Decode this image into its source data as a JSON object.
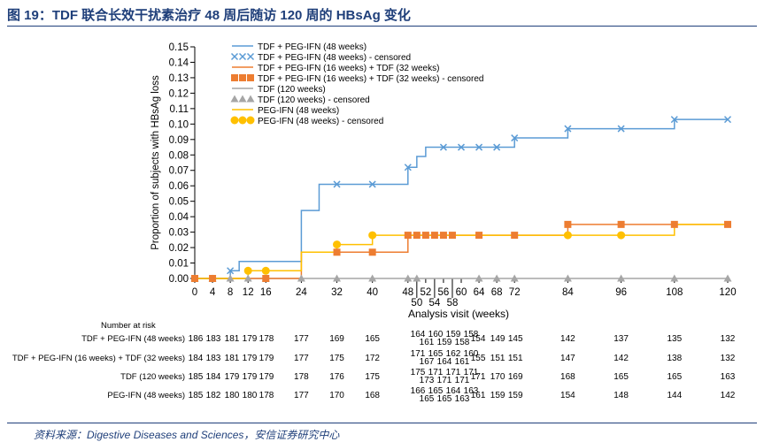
{
  "figure": {
    "title": "图 19：TDF 联合长效干扰素治疗 48 周后随访 120 周的 HBsAg 变化",
    "source": "资料来源：Digestive Diseases and Sciences，安信证券研究中心"
  },
  "chart_data": {
    "type": "line",
    "step": true,
    "xlabel": "Analysis visit (weeks)",
    "ylabel": "Proportion of subjects with HBsAg loss",
    "xlim": [
      0,
      120
    ],
    "ylim": [
      0,
      0.15
    ],
    "x_ticks": [
      0,
      4,
      8,
      12,
      16,
      24,
      32,
      40,
      48,
      52,
      56,
      60,
      64,
      68,
      72,
      84,
      96,
      108,
      120
    ],
    "x_ticks_row2": [
      50,
      54,
      58
    ],
    "y_ticks": [
      "0.00",
      "0.01",
      "0.02",
      "0.03",
      "0.04",
      "0.05",
      "0.06",
      "0.07",
      "0.08",
      "0.09",
      "0.10",
      "0.11",
      "0.12",
      "0.13",
      "0.14",
      "0.15"
    ],
    "legend_position": "top-left",
    "legend": [
      {
        "label": "TDF + PEG-IFN (48 weeks)",
        "kind": "line",
        "series": 0
      },
      {
        "label": "TDF + PEG-IFN (48 weeks) - censored",
        "kind": "marker",
        "series": 0
      },
      {
        "label": "TDF + PEG-IFN (16 weeks) + TDF (32 weeks)",
        "kind": "line",
        "series": 1
      },
      {
        "label": "TDF + PEG-IFN (16 weeks) + TDF (32 weeks) - censored",
        "kind": "marker",
        "series": 1
      },
      {
        "label": "TDF (120 weeks)",
        "kind": "line",
        "series": 2
      },
      {
        "label": "TDF (120 weeks) - censored",
        "kind": "marker",
        "series": 2
      },
      {
        "label": "PEG-IFN (48 weeks)",
        "kind": "line",
        "series": 3
      },
      {
        "label": "PEG-IFN (48 weeks) - censored",
        "kind": "marker",
        "series": 3
      }
    ],
    "series": [
      {
        "name": "TDF + PEG-IFN (48 weeks)",
        "color": "#5b9bd5",
        "marker": "x",
        "x": [
          0,
          8,
          10,
          24,
          28,
          48,
          50,
          52,
          72,
          84,
          108,
          120
        ],
        "y": [
          0,
          0.005,
          0.011,
          0.044,
          0.061,
          0.072,
          0.079,
          0.085,
          0.091,
          0.097,
          0.103,
          0.103
        ],
        "censored_x": [
          8,
          32,
          40,
          48,
          56,
          60,
          64,
          68,
          72,
          84,
          96,
          108,
          120
        ]
      },
      {
        "name": "TDF + PEG-IFN (16 weeks) + TDF (32 weeks)",
        "color": "#ed7d31",
        "marker": "square",
        "x": [
          0,
          24,
          48,
          84,
          120
        ],
        "y": [
          0,
          0.017,
          0.028,
          0.035,
          0.035
        ],
        "censored_x": [
          0,
          4,
          16,
          32,
          40,
          48,
          50,
          52,
          54,
          56,
          58,
          64,
          72,
          84,
          96,
          108,
          120
        ]
      },
      {
        "name": "TDF (120 weeks)",
        "color": "#a6a6a6",
        "marker": "triangle",
        "x": [
          0,
          120
        ],
        "y": [
          0,
          0
        ],
        "censored_x": [
          0,
          4,
          8,
          12,
          16,
          24,
          32,
          40,
          48,
          50,
          64,
          68,
          72,
          84,
          96,
          108,
          120
        ]
      },
      {
        "name": "PEG-IFN (48 weeks)",
        "color": "#ffc000",
        "marker": "circle",
        "x": [
          0,
          12,
          24,
          32,
          40,
          108,
          120
        ],
        "y": [
          0,
          0.005,
          0.017,
          0.022,
          0.028,
          0.035,
          0.035
        ],
        "censored_x": [
          12,
          16,
          32,
          40,
          84,
          96
        ]
      }
    ],
    "number_at_risk": {
      "heading": "Number at risk",
      "rows": [
        {
          "label": "TDF + PEG-IFN (48 weeks)",
          "values": [
            "186",
            "183",
            "181",
            "179",
            "178",
            "177",
            "169",
            "165",
            "164",
            "160",
            "159",
            "158",
            "161",
            "159",
            "158",
            "154",
            "149",
            "145",
            "142",
            "137",
            "135",
            "132"
          ]
        },
        {
          "label": "TDF + PEG-IFN (16 weeks) + TDF (32 weeks)",
          "values": [
            "184",
            "183",
            "181",
            "179",
            "179",
            "177",
            "175",
            "172",
            "171",
            "165",
            "162",
            "160",
            "167",
            "164",
            "161",
            "155",
            "151",
            "151",
            "147",
            "142",
            "138",
            "132"
          ]
        },
        {
          "label": "TDF (120 weeks)",
          "values": [
            "185",
            "184",
            "179",
            "179",
            "179",
            "178",
            "176",
            "175",
            "175",
            "171",
            "171",
            "171",
            "173",
            "171",
            "171",
            "171",
            "170",
            "169",
            "168",
            "165",
            "165",
            "163"
          ]
        },
        {
          "label": "PEG-IFN (48 weeks)",
          "values": [
            "185",
            "182",
            "180",
            "180",
            "178",
            "177",
            "170",
            "168",
            "166",
            "165",
            "164",
            "163",
            "165",
            "165",
            "163",
            "161",
            "159",
            "159",
            "154",
            "148",
            "144",
            "142"
          ]
        }
      ]
    }
  }
}
